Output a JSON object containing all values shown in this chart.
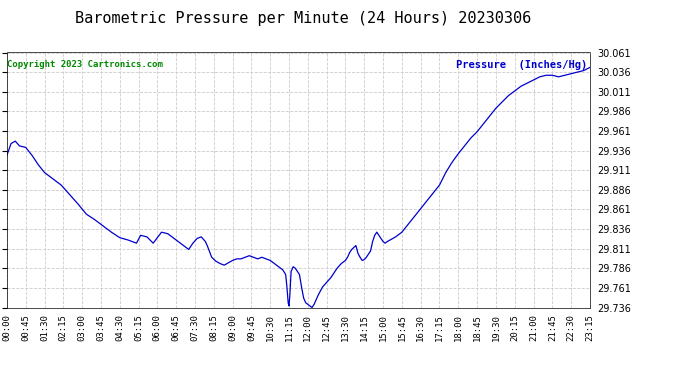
{
  "title": "Barometric Pressure per Minute (24 Hours) 20230306",
  "copyright_text": "Copyright 2023 Cartronics.com",
  "legend_text": "Pressure  (Inches/Hg)",
  "line_color": "#0000CC",
  "copyright_color": "#008800",
  "legend_color": "#0000CC",
  "background_color": "#ffffff",
  "grid_color": "#cccccc",
  "title_fontsize": 11,
  "ymin": 29.736,
  "ymax": 30.061,
  "ytick_interval": 0.025,
  "x_labels": [
    "00:00",
    "00:45",
    "01:30",
    "02:15",
    "03:00",
    "03:45",
    "04:30",
    "05:15",
    "06:00",
    "06:45",
    "07:30",
    "08:15",
    "09:00",
    "09:45",
    "10:30",
    "11:15",
    "12:00",
    "12:45",
    "13:30",
    "14:15",
    "15:00",
    "15:45",
    "16:30",
    "17:15",
    "18:00",
    "18:45",
    "19:30",
    "20:15",
    "21:00",
    "21:45",
    "22:30",
    "23:15"
  ],
  "key_times": [
    0,
    45,
    90,
    135,
    180,
    225,
    270,
    315,
    360,
    405,
    450,
    495,
    540,
    585,
    630,
    675,
    720,
    765,
    810,
    855,
    900,
    945,
    990,
    1035,
    1080,
    1125,
    1170,
    1215,
    1260,
    1305,
    1350,
    1395
  ],
  "pressure_curve": [
    [
      0,
      29.93
    ],
    [
      10,
      29.945
    ],
    [
      20,
      29.948
    ],
    [
      30,
      29.942
    ],
    [
      45,
      29.94
    ],
    [
      60,
      29.93
    ],
    [
      75,
      29.918
    ],
    [
      90,
      29.908
    ],
    [
      110,
      29.9
    ],
    [
      130,
      29.892
    ],
    [
      150,
      29.88
    ],
    [
      170,
      29.868
    ],
    [
      190,
      29.855
    ],
    [
      210,
      29.848
    ],
    [
      230,
      29.84
    ],
    [
      250,
      29.832
    ],
    [
      270,
      29.825
    ],
    [
      290,
      29.822
    ],
    [
      310,
      29.818
    ],
    [
      320,
      29.828
    ],
    [
      335,
      29.826
    ],
    [
      350,
      29.818
    ],
    [
      360,
      29.825
    ],
    [
      370,
      29.832
    ],
    [
      385,
      29.83
    ],
    [
      400,
      29.824
    ],
    [
      405,
      29.822
    ],
    [
      415,
      29.818
    ],
    [
      425,
      29.814
    ],
    [
      435,
      29.81
    ],
    [
      445,
      29.818
    ],
    [
      455,
      29.824
    ],
    [
      465,
      29.826
    ],
    [
      475,
      29.82
    ],
    [
      480,
      29.814
    ],
    [
      490,
      29.8
    ],
    [
      500,
      29.795
    ],
    [
      510,
      29.792
    ],
    [
      520,
      29.79
    ],
    [
      530,
      29.793
    ],
    [
      540,
      29.796
    ],
    [
      550,
      29.798
    ],
    [
      560,
      29.798
    ],
    [
      570,
      29.8
    ],
    [
      580,
      29.802
    ],
    [
      590,
      29.8
    ],
    [
      600,
      29.798
    ],
    [
      610,
      29.8
    ],
    [
      620,
      29.798
    ],
    [
      630,
      29.796
    ],
    [
      640,
      29.792
    ],
    [
      650,
      29.788
    ],
    [
      660,
      29.784
    ],
    [
      667,
      29.778
    ],
    [
      670,
      29.762
    ],
    [
      673,
      29.742
    ],
    [
      675,
      29.738
    ],
    [
      677,
      29.752
    ],
    [
      680,
      29.782
    ],
    [
      685,
      29.788
    ],
    [
      690,
      29.786
    ],
    [
      695,
      29.782
    ],
    [
      700,
      29.778
    ],
    [
      705,
      29.762
    ],
    [
      710,
      29.748
    ],
    [
      715,
      29.742
    ],
    [
      720,
      29.74
    ],
    [
      725,
      29.738
    ],
    [
      730,
      29.736
    ],
    [
      735,
      29.74
    ],
    [
      745,
      29.752
    ],
    [
      755,
      29.762
    ],
    [
      765,
      29.768
    ],
    [
      775,
      29.774
    ],
    [
      780,
      29.778
    ],
    [
      785,
      29.782
    ],
    [
      790,
      29.786
    ],
    [
      800,
      29.792
    ],
    [
      810,
      29.796
    ],
    [
      815,
      29.8
    ],
    [
      820,
      29.806
    ],
    [
      825,
      29.81
    ],
    [
      835,
      29.815
    ],
    [
      840,
      29.805
    ],
    [
      845,
      29.8
    ],
    [
      850,
      29.796
    ],
    [
      855,
      29.797
    ],
    [
      860,
      29.8
    ],
    [
      870,
      29.808
    ],
    [
      875,
      29.82
    ],
    [
      880,
      29.828
    ],
    [
      885,
      29.832
    ],
    [
      890,
      29.828
    ],
    [
      895,
      29.824
    ],
    [
      900,
      29.82
    ],
    [
      905,
      29.818
    ],
    [
      910,
      29.82
    ],
    [
      930,
      29.826
    ],
    [
      945,
      29.832
    ],
    [
      960,
      29.842
    ],
    [
      975,
      29.852
    ],
    [
      990,
      29.862
    ],
    [
      1005,
      29.872
    ],
    [
      1020,
      29.882
    ],
    [
      1035,
      29.892
    ],
    [
      1050,
      29.908
    ],
    [
      1065,
      29.921
    ],
    [
      1080,
      29.932
    ],
    [
      1095,
      29.942
    ],
    [
      1110,
      29.952
    ],
    [
      1125,
      29.96
    ],
    [
      1140,
      29.97
    ],
    [
      1155,
      29.98
    ],
    [
      1170,
      29.99
    ],
    [
      1185,
      29.998
    ],
    [
      1200,
      30.006
    ],
    [
      1215,
      30.012
    ],
    [
      1230,
      30.018
    ],
    [
      1245,
      30.022
    ],
    [
      1260,
      30.026
    ],
    [
      1275,
      30.03
    ],
    [
      1290,
      30.032
    ],
    [
      1305,
      30.032
    ],
    [
      1320,
      30.03
    ],
    [
      1335,
      30.032
    ],
    [
      1350,
      30.034
    ],
    [
      1365,
      30.036
    ],
    [
      1380,
      30.038
    ],
    [
      1395,
      30.042
    ]
  ]
}
